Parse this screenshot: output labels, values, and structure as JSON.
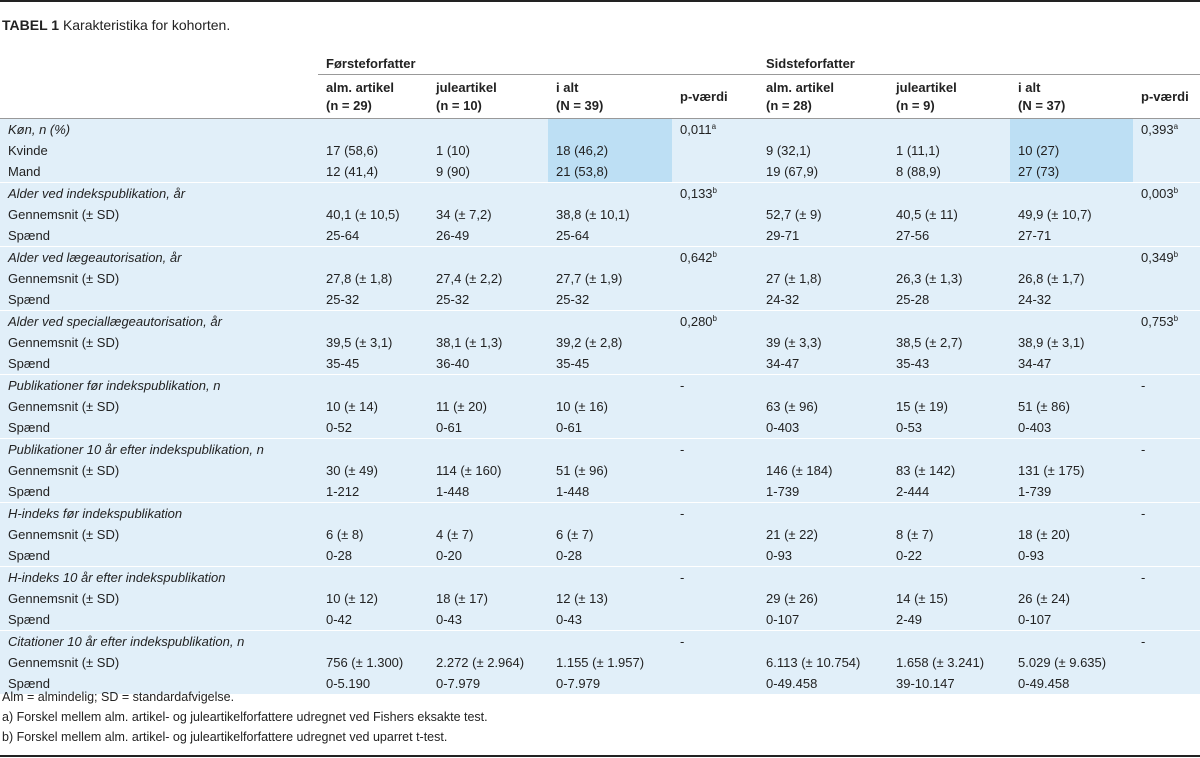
{
  "title": {
    "label": "TABEL 1",
    "text": "Karakteristika for kohorten."
  },
  "groups": [
    "Førsteforfatter",
    "Sidsteforfatter"
  ],
  "columns": [
    [
      [
        "alm. artikel",
        "(n = 29)"
      ],
      [
        "juleartikel",
        "(n = 10)"
      ],
      [
        "i alt",
        "(N = 39)"
      ],
      [
        "p-værdi"
      ]
    ],
    [
      [
        "alm. artikel",
        "(n = 28)"
      ],
      [
        "juleartikel",
        "(n = 9)"
      ],
      [
        "i alt",
        "(N = 37)"
      ],
      [
        "p-værdi"
      ]
    ]
  ],
  "sections": [
    {
      "heading": "Køn, n (%)",
      "p": [
        {
          "value": "0,011",
          "note": "a"
        },
        {
          "value": "0,393",
          "note": "a"
        }
      ],
      "rows": [
        {
          "label": "Kvinde",
          "values": [
            [
              "17 (58,6)",
              "1 (10)",
              "18 (46,2)"
            ],
            [
              "9 (32,1)",
              "1 (11,1)",
              "10 (27)"
            ]
          ]
        },
        {
          "label": "Mand",
          "values": [
            [
              "12 (41,4)",
              "9 (90)",
              "21 (53,8)"
            ],
            [
              "19 (67,9)",
              "8 (88,9)",
              "27 (73)"
            ]
          ]
        }
      ]
    },
    {
      "heading": "Alder ved indekspublikation, år",
      "p": [
        {
          "value": "0,133",
          "note": "b"
        },
        {
          "value": "0,003",
          "note": "b"
        }
      ],
      "rows": [
        {
          "label": "Gennemsnit (± SD)",
          "values": [
            [
              "40,1 (± 10,5)",
              "34 (± 7,2)",
              "38,8 (± 10,1)"
            ],
            [
              "52,7 (± 9)",
              "40,5 (± 11)",
              "49,9 (± 10,7)"
            ]
          ]
        },
        {
          "label": "Spænd",
          "values": [
            [
              "25-64",
              "26-49",
              "25-64"
            ],
            [
              "29-71",
              "27-56",
              "27-71"
            ]
          ]
        }
      ]
    },
    {
      "heading": "Alder ved lægeautorisation, år",
      "p": [
        {
          "value": "0,642",
          "note": "b"
        },
        {
          "value": "0,349",
          "note": "b"
        }
      ],
      "rows": [
        {
          "label": "Gennemsnit (± SD)",
          "values": [
            [
              "27,8 (± 1,8)",
              "27,4 (± 2,2)",
              "27,7 (± 1,9)"
            ],
            [
              "27 (± 1,8)",
              "26,3 (± 1,3)",
              "26,8 (± 1,7)"
            ]
          ]
        },
        {
          "label": "Spænd",
          "values": [
            [
              "25-32",
              "25-32",
              "25-32"
            ],
            [
              "24-32",
              "25-28",
              "24-32"
            ]
          ]
        }
      ]
    },
    {
      "heading": "Alder ved speciallægeautorisation, år",
      "p": [
        {
          "value": "0,280",
          "note": "b"
        },
        {
          "value": "0,753",
          "note": "b"
        }
      ],
      "rows": [
        {
          "label": "Gennemsnit (± SD)",
          "values": [
            [
              "39,5 (± 3,1)",
              "38,1 (± 1,3)",
              "39,2 (± 2,8)"
            ],
            [
              "39 (± 3,3)",
              "38,5 (± 2,7)",
              "38,9 (± 3,1)"
            ]
          ]
        },
        {
          "label": "Spænd",
          "values": [
            [
              "35-45",
              "36-40",
              "35-45"
            ],
            [
              "34-47",
              "35-43",
              "34-47"
            ]
          ]
        }
      ]
    },
    {
      "heading": "Publikationer før indekspublikation, n",
      "p": [
        {
          "value": "-"
        },
        {
          "value": "-"
        }
      ],
      "rows": [
        {
          "label": "Gennemsnit (± SD)",
          "values": [
            [
              "10 (± 14)",
              "11 (± 20)",
              "10 (± 16)"
            ],
            [
              "63 (± 96)",
              "15 (± 19)",
              "51 (± 86)"
            ]
          ]
        },
        {
          "label": "Spænd",
          "values": [
            [
              "0-52",
              "0-61",
              "0-61"
            ],
            [
              "0-403",
              "0-53",
              "0-403"
            ]
          ]
        }
      ]
    },
    {
      "heading": "Publikationer 10 år efter indekspublikation, n",
      "p": [
        {
          "value": "-"
        },
        {
          "value": "-"
        }
      ],
      "rows": [
        {
          "label": "Gennemsnit (± SD)",
          "values": [
            [
              "30 (± 49)",
              "114 (± 160)",
              "51 (± 96)"
            ],
            [
              "146 (± 184)",
              "83 (± 142)",
              "131 (± 175)"
            ]
          ]
        },
        {
          "label": "Spænd",
          "values": [
            [
              "1-212",
              "1-448",
              "1-448"
            ],
            [
              "1-739",
              "2-444",
              "1-739"
            ]
          ]
        }
      ]
    },
    {
      "heading": "H-indeks før indekspublikation",
      "p": [
        {
          "value": "-"
        },
        {
          "value": "-"
        }
      ],
      "rows": [
        {
          "label": "Gennemsnit (± SD)",
          "values": [
            [
              "6 (± 8)",
              "4 (± 7)",
              "6 (± 7)"
            ],
            [
              "21 (± 22)",
              "8 (± 7)",
              "18 (± 20)"
            ]
          ]
        },
        {
          "label": "Spænd",
          "values": [
            [
              "0-28",
              "0-20",
              "0-28"
            ],
            [
              "0-93",
              "0-22",
              "0-93"
            ]
          ]
        }
      ]
    },
    {
      "heading": "H-indeks 10 år efter indekspublikation",
      "p": [
        {
          "value": "-"
        },
        {
          "value": "-"
        }
      ],
      "rows": [
        {
          "label": "Gennemsnit (± SD)",
          "values": [
            [
              "10 (± 12)",
              "18 (± 17)",
              "12 (± 13)"
            ],
            [
              "29 (± 26)",
              "14 (± 15)",
              "26 (± 24)"
            ]
          ]
        },
        {
          "label": "Spænd",
          "values": [
            [
              "0-42",
              "0-43",
              "0-43"
            ],
            [
              "0-107",
              "2-49",
              "0-107"
            ]
          ]
        }
      ]
    },
    {
      "heading": "Citationer 10 år efter indekspublikation, n",
      "p": [
        {
          "value": "-"
        },
        {
          "value": "-"
        }
      ],
      "rows": [
        {
          "label": "Gennemsnit (± SD)",
          "values": [
            [
              "756 (± 1.300)",
              "2.272 (± 2.964)",
              "1.155 (± 1.957)"
            ],
            [
              "6.113 (± 10.754)",
              "1.658 (± 3.241)",
              "5.029 (± 9.635)"
            ]
          ]
        },
        {
          "label": "Spænd",
          "values": [
            [
              "0-5.190",
              "0-7.979",
              "0-7.979"
            ],
            [
              "0-49.458",
              "39-10.147",
              "0-49.458"
            ]
          ]
        }
      ]
    }
  ],
  "footnotes": [
    "Alm = almindelig; SD = standardafvigelse.",
    "a) Forskel mellem alm. artikel- og juleartikelforfattere udregnet ved Fishers eksakte test.",
    "b) Forskel mellem alm. artikel- og juleartikelforfattere udregnet ved uparret t-test."
  ]
}
